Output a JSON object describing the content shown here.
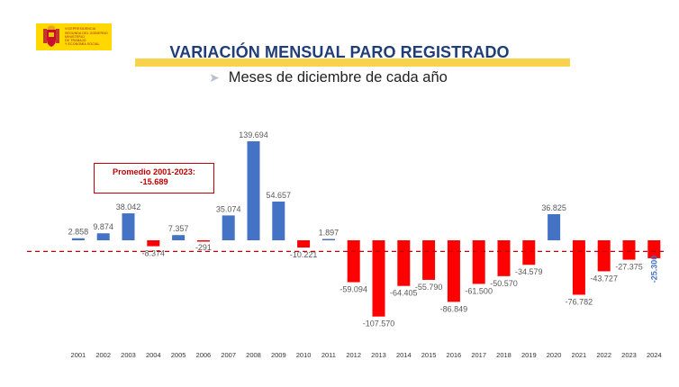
{
  "logo": {
    "lines": [
      "VICEPRESIDENCIA",
      "SEGUNDA DEL GOBIERNO",
      "MINISTERIO",
      "DE TRABAJO",
      "Y ECONOMÍA SOCIAL"
    ]
  },
  "header": {
    "title": "VARIACIÓN MENSUAL PARO REGISTRADO",
    "subtitle": "Meses de diciembre de cada año"
  },
  "average_box": {
    "label": "Promedio 2001-2023:",
    "value": "-15.689"
  },
  "colors": {
    "positive": "#4472c4",
    "negative": "#ff0000",
    "average_line": "#c00000",
    "title": "#1f3d78",
    "band": "#f7d24a"
  },
  "chart_data": {
    "type": "bar",
    "title": "VARIACIÓN MENSUAL PARO REGISTRADO",
    "subtitle": "Meses de diciembre de cada año",
    "categories": [
      "2001",
      "2002",
      "2003",
      "2004",
      "2005",
      "2006",
      "2007",
      "2008",
      "2009",
      "2010",
      "2011",
      "2012",
      "2013",
      "2014",
      "2015",
      "2016",
      "2017",
      "2018",
      "2019",
      "2020",
      "2021",
      "2022",
      "2023",
      "2024"
    ],
    "values": [
      2858,
      9874,
      38042,
      -8374,
      7357,
      -291,
      35074,
      139694,
      54657,
      -10221,
      1897,
      -59094,
      -107570,
      -64405,
      -55790,
      -86849,
      -61500,
      -50570,
      -34579,
      36825,
      -76782,
      -43727,
      -27375,
      -25300
    ],
    "labels": [
      "2.858",
      "9.874",
      "38.042",
      "-8.374",
      "7.357",
      "-291",
      "35.074",
      "139.694",
      "54.657",
      "-10.221",
      "1.897",
      "-59.094",
      "-107.570",
      "-64.405",
      "-55.790",
      "-86.849",
      "-61.500",
      "-50.570",
      "-34.579",
      "36.825",
      "-76.782",
      "-43.727",
      "-27.375",
      "-25.300"
    ],
    "average": -15689,
    "average_label": "Promedio 2001-2023:",
    "ylim": [
      -110000,
      145000
    ],
    "xlabel": "",
    "ylabel": "",
    "grid": false,
    "legend": "none"
  }
}
